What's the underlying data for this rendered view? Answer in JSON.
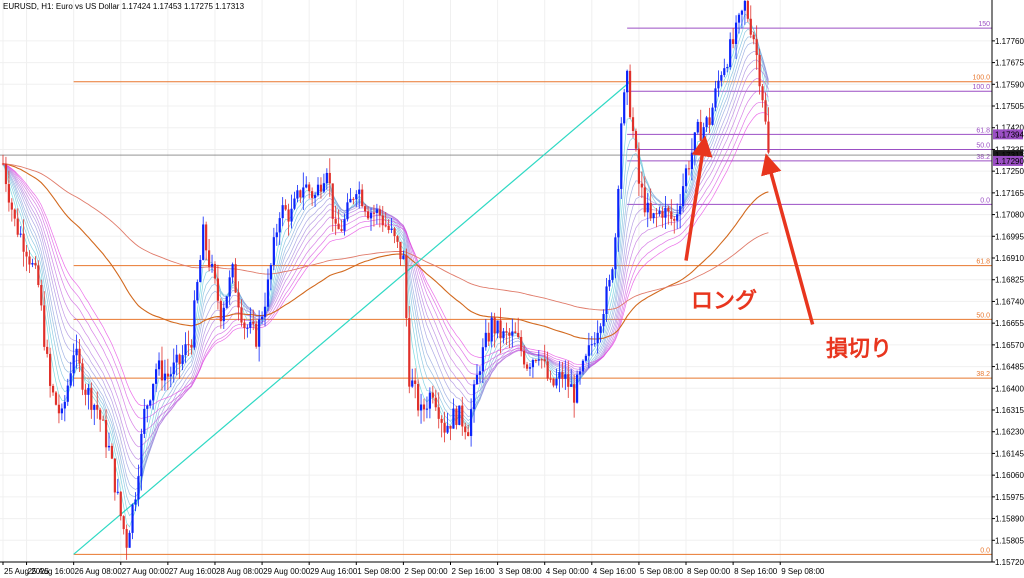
{
  "window": {
    "symbol_title": "EURUSD, H1:  Euro vs US Dollar  1.17424 1.17453 1.17275 1.17313"
  },
  "colors": {
    "bull_candle": "#0b24fb",
    "bear_candle": "#e0302a",
    "fib_orange": "#e8772e",
    "fib_purple": "#9b4fc4",
    "trend_cyan": "#2fd9c4",
    "ma_slow_1": "#d2691e",
    "ma_slow_2": "#e07b6a",
    "annotation_red": "#e8351e",
    "price_label_bg": "#9b4fc4",
    "current_price_bg": "#1a1a1a"
  },
  "chart_data": {
    "type": "candlestick",
    "title": "EURUSD, H1:  Euro vs US Dollar  1.17424 1.17453 1.17275 1.17313",
    "ylim": [
      1.1572,
      1.1792
    ],
    "y_ticks": [
      "1.17760",
      "1.17675",
      "1.17590",
      "1.17505",
      "1.17420",
      "1.17335",
      "1.17250",
      "1.17165",
      "1.17080",
      "1.16995",
      "1.16910",
      "1.16825",
      "1.16740",
      "1.16655",
      "1.16570",
      "1.16485",
      "1.16400",
      "1.16315",
      "1.16230",
      "1.16145",
      "1.16060",
      "1.15975",
      "1.15890",
      "1.15805",
      "1.15720"
    ],
    "x_ticks": [
      {
        "label": "25 Aug 2025",
        "t": 0
      },
      {
        "label": "25 Aug 16:00",
        "t": 8
      },
      {
        "label": "26 Aug 08:00",
        "t": 24
      },
      {
        "label": "27 Aug 00:00",
        "t": 40
      },
      {
        "label": "27 Aug 16:00",
        "t": 56
      },
      {
        "label": "28 Aug 08:00",
        "t": 72
      },
      {
        "label": "29 Aug 00:00",
        "t": 88
      },
      {
        "label": "29 Aug 16:00",
        "t": 104
      },
      {
        "label": "1 Sep 08:00",
        "t": 120
      },
      {
        "label": "2 Sep 00:00",
        "t": 136
      },
      {
        "label": "2 Sep 16:00",
        "t": 152
      },
      {
        "label": "3 Sep 08:00",
        "t": 168
      },
      {
        "label": "4 Sep 00:00",
        "t": 184
      },
      {
        "label": "4 Sep 16:00",
        "t": 200
      },
      {
        "label": "5 Sep 08:00",
        "t": 216
      },
      {
        "label": "8 Sep 00:00",
        "t": 232
      },
      {
        "label": "8 Sep 16:00",
        "t": 248
      },
      {
        "label": "9 Sep 08:00",
        "t": 264
      }
    ],
    "price_path": [
      [
        0,
        1.1728
      ],
      [
        4,
        1.1705
      ],
      [
        8,
        1.1695
      ],
      [
        12,
        1.168
      ],
      [
        16,
        1.164
      ],
      [
        20,
        1.1628
      ],
      [
        24,
        1.1655
      ],
      [
        28,
        1.164
      ],
      [
        32,
        1.1632
      ],
      [
        36,
        1.1616
      ],
      [
        40,
        1.159
      ],
      [
        42,
        1.158
      ],
      [
        45,
        1.16
      ],
      [
        48,
        1.163
      ],
      [
        52,
        1.1648
      ],
      [
        56,
        1.1645
      ],
      [
        60,
        1.165
      ],
      [
        64,
        1.166
      ],
      [
        68,
        1.17
      ],
      [
        70,
        1.169
      ],
      [
        74,
        1.167
      ],
      [
        78,
        1.1685
      ],
      [
        82,
        1.1665
      ],
      [
        86,
        1.166
      ],
      [
        90,
        1.168
      ],
      [
        94,
        1.171
      ],
      [
        98,
        1.1708
      ],
      [
        102,
        1.172
      ],
      [
        106,
        1.1715
      ],
      [
        110,
        1.1728
      ],
      [
        113,
        1.17
      ],
      [
        116,
        1.1705
      ],
      [
        120,
        1.172
      ],
      [
        124,
        1.171
      ],
      [
        128,
        1.1708
      ],
      [
        132,
        1.17
      ],
      [
        136,
        1.169
      ],
      [
        138,
        1.1645
      ],
      [
        142,
        1.163
      ],
      [
        146,
        1.164
      ],
      [
        150,
        1.1625
      ],
      [
        154,
        1.163
      ],
      [
        158,
        1.1625
      ],
      [
        162,
        1.165
      ],
      [
        166,
        1.1665
      ],
      [
        170,
        1.166
      ],
      [
        174,
        1.166
      ],
      [
        178,
        1.165
      ],
      [
        182,
        1.1655
      ],
      [
        186,
        1.164
      ],
      [
        190,
        1.1645
      ],
      [
        194,
        1.1638
      ],
      [
        198,
        1.165
      ],
      [
        202,
        1.1665
      ],
      [
        206,
        1.168
      ],
      [
        208,
        1.17
      ],
      [
        210,
        1.1745
      ],
      [
        212,
        1.176
      ],
      [
        214,
        1.174
      ],
      [
        216,
        1.172
      ],
      [
        220,
        1.1705
      ],
      [
        224,
        1.171
      ],
      [
        228,
        1.1705
      ],
      [
        232,
        1.1725
      ],
      [
        236,
        1.174
      ],
      [
        240,
        1.1745
      ],
      [
        244,
        1.1765
      ],
      [
        248,
        1.1775
      ],
      [
        252,
        1.179
      ],
      [
        255,
        1.1778
      ],
      [
        258,
        1.1755
      ],
      [
        260,
        1.1731
      ]
    ],
    "fib_levels_major": [
      {
        "label": "100.0",
        "price": 1.176
      },
      {
        "label": "61.8",
        "price": 1.1688
      },
      {
        "label": "50.0",
        "price": 1.1667
      },
      {
        "label": "38.2",
        "price": 1.1644
      },
      {
        "label": "0.0",
        "price": 1.1575
      }
    ],
    "fib_levels_minor": [
      {
        "label": "150",
        "price": 1.1781
      },
      {
        "label": "100.0",
        "price": 1.17563
      },
      {
        "label": "61.8",
        "price": 1.17394
      },
      {
        "label": "50.0",
        "price": 1.17335
      },
      {
        "label": "38.2",
        "price": 1.1729
      },
      {
        "label": "0.0",
        "price": 1.1712
      }
    ],
    "price_labels": [
      {
        "text": "1.17394",
        "price": 1.17394,
        "kind": "fib"
      },
      {
        "text": "1.17313",
        "price": 1.17313,
        "kind": "current"
      },
      {
        "text": "1.17290",
        "price": 1.1729,
        "kind": "fib"
      }
    ],
    "trend_line": {
      "from": [
        24,
        1.1575
      ],
      "to": [
        213,
        1.176
      ]
    },
    "annotations": [
      {
        "text": "ロング",
        "arrow_from": [
          232,
          1.169
        ],
        "arrow_to": [
          238,
          1.1735
        ]
      },
      {
        "text": "損切り",
        "arrow_from": [
          275,
          1.1665
        ],
        "arrow_to": [
          260,
          1.1728
        ]
      }
    ]
  }
}
